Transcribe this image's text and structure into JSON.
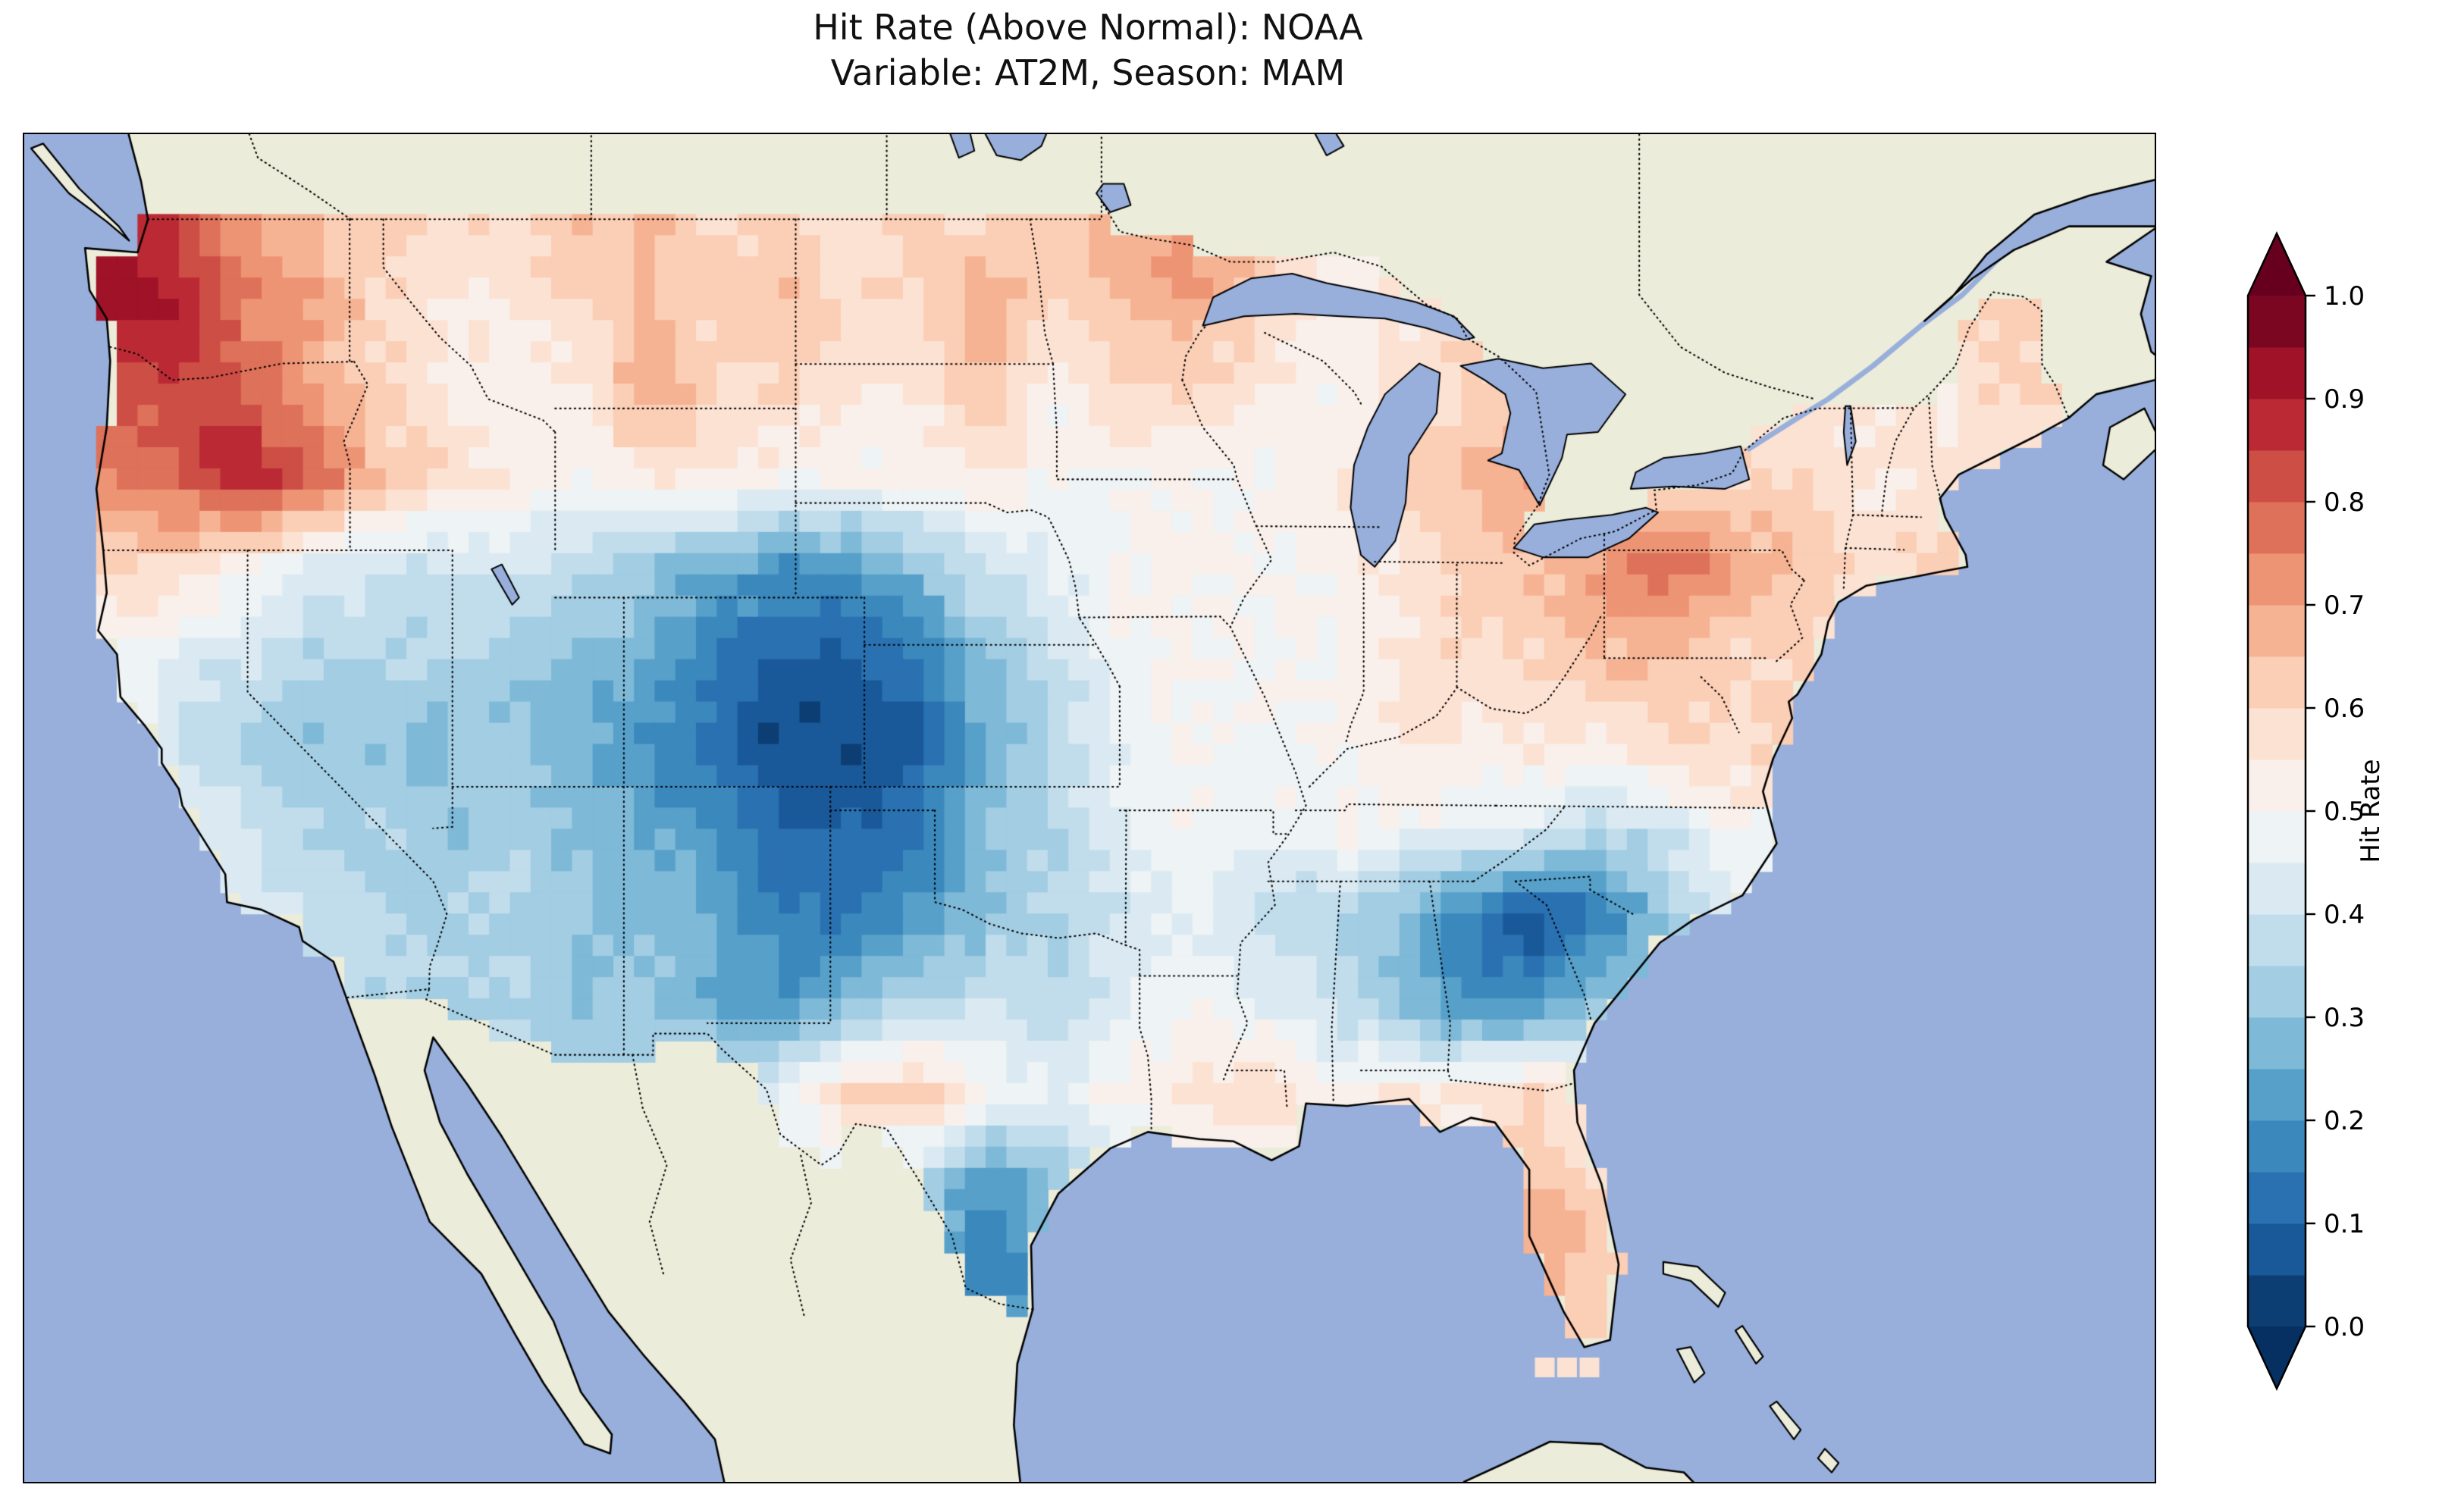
{
  "title": {
    "line1": "Hit Rate (Above Normal): NOAA",
    "line2": "Variable: AT2M, Season: MAM"
  },
  "colorbar": {
    "label": "Hit Rate",
    "ticks": [
      "0.0",
      "0.1",
      "0.2",
      "0.3",
      "0.4",
      "0.5",
      "0.6",
      "0.7",
      "0.8",
      "0.9",
      "1.0"
    ],
    "min": 0.0,
    "max": 1.0,
    "extend": "both",
    "bands": 20
  },
  "colors": {
    "ocean": "#98afdc",
    "land": "#ececda",
    "coastline": "#000000",
    "figure_background": "#ffffff",
    "border_linestyle": "dotted",
    "colormap_stops": [
      "#053061",
      "#2166ac",
      "#4393c3",
      "#92c5de",
      "#d1e5f0",
      "#f7f7f7",
      "#fddbc7",
      "#f4a582",
      "#d6604d",
      "#b2182b",
      "#67001f"
    ]
  },
  "chart_data": {
    "type": "heatmap",
    "title": "Hit Rate (Above Normal): NOAA",
    "subtitle": "Variable: AT2M, Season: MAM",
    "source": "NOAA",
    "variable": "AT2M",
    "season": "MAM",
    "category": "Above Normal",
    "colorbar_label": "Hit Rate",
    "value_range": [
      0.0,
      1.0
    ],
    "colormap": "RdBu_r",
    "region": "Contiguous United States",
    "florida_keys_values": [
      0.55,
      0.55,
      0.55
    ],
    "grid": {
      "lon_min": -125,
      "lon_max": -66,
      "lat_min": 24,
      "lat_max": 50,
      "ncols": 30,
      "nrows": 14,
      "values_rows_north_to_south": [
        [
          0.9,
          0.85,
          0.7,
          0.65,
          0.6,
          0.6,
          0.6,
          0.65,
          0.65,
          0.6,
          0.6,
          0.55,
          0.6,
          0.6,
          0.65,
          0.7,
          0.75,
          0.65,
          0.55,
          0.55,
          0.55,
          0.55,
          0.55,
          0.55,
          0.55,
          0.6,
          0.6,
          0.6,
          0.65,
          0.65
        ],
        [
          0.95,
          0.9,
          0.75,
          0.7,
          0.6,
          0.55,
          0.55,
          0.6,
          0.65,
          0.6,
          0.65,
          0.6,
          0.6,
          0.7,
          0.6,
          0.65,
          0.7,
          0.6,
          0.55,
          0.55,
          0.6,
          0.6,
          0.55,
          0.55,
          0.6,
          0.6,
          0.6,
          0.6,
          0.6,
          0.6
        ],
        [
          0.8,
          0.85,
          0.8,
          0.7,
          0.6,
          0.55,
          0.5,
          0.55,
          0.7,
          0.6,
          0.6,
          0.55,
          0.55,
          0.65,
          0.5,
          0.6,
          0.6,
          0.55,
          0.5,
          0.55,
          0.6,
          0.6,
          0.55,
          0.55,
          0.55,
          0.55,
          0.55,
          0.55,
          0.6,
          0.6
        ],
        [
          0.75,
          0.8,
          0.9,
          0.8,
          0.65,
          0.6,
          0.55,
          0.5,
          0.55,
          0.55,
          0.5,
          0.5,
          0.5,
          0.55,
          0.5,
          0.5,
          0.5,
          0.5,
          0.55,
          0.6,
          0.65,
          0.7,
          0.6,
          0.6,
          0.6,
          0.6,
          0.55,
          0.55,
          0.55,
          0.55
        ],
        [
          0.6,
          0.6,
          0.5,
          0.45,
          0.4,
          0.4,
          0.4,
          0.35,
          0.3,
          0.25,
          0.2,
          0.2,
          0.3,
          0.4,
          0.45,
          0.5,
          0.5,
          0.5,
          0.5,
          0.55,
          0.6,
          0.65,
          0.7,
          0.8,
          0.7,
          0.65,
          0.6,
          0.6,
          0.6,
          0.6
        ],
        [
          0.5,
          0.45,
          0.4,
          0.35,
          0.35,
          0.35,
          0.3,
          0.3,
          0.25,
          0.15,
          0.1,
          0.1,
          0.15,
          0.3,
          0.4,
          0.5,
          0.5,
          0.5,
          0.5,
          0.55,
          0.6,
          0.6,
          0.65,
          0.65,
          0.6,
          0.6,
          0.6,
          0.6,
          0.6,
          0.6
        ],
        [
          0.45,
          0.4,
          0.35,
          0.3,
          0.3,
          0.3,
          0.3,
          0.25,
          0.2,
          0.1,
          0.05,
          0.05,
          0.1,
          0.25,
          0.35,
          0.45,
          0.5,
          0.5,
          0.5,
          0.55,
          0.55,
          0.55,
          0.55,
          0.6,
          0.6,
          0.6,
          0.6,
          0.6,
          0.6,
          0.6
        ],
        [
          0.45,
          0.45,
          0.4,
          0.35,
          0.35,
          0.3,
          0.35,
          0.3,
          0.25,
          0.2,
          0.1,
          0.1,
          0.15,
          0.3,
          0.35,
          0.45,
          0.5,
          0.45,
          0.5,
          0.5,
          0.45,
          0.45,
          0.35,
          0.4,
          0.5,
          0.5,
          0.5,
          0.5,
          0.5,
          0.5
        ],
        [
          0.45,
          0.45,
          0.45,
          0.4,
          0.35,
          0.35,
          0.35,
          0.3,
          0.3,
          0.25,
          0.15,
          0.15,
          0.2,
          0.3,
          0.35,
          0.4,
          0.45,
          0.4,
          0.35,
          0.3,
          0.15,
          0.05,
          0.15,
          0.3,
          0.45,
          0.45,
          0.45,
          0.45,
          0.45,
          0.45
        ],
        [
          0.4,
          0.4,
          0.4,
          0.4,
          0.35,
          0.35,
          0.35,
          0.3,
          0.3,
          0.25,
          0.2,
          0.3,
          0.35,
          0.4,
          0.35,
          0.45,
          0.5,
          0.45,
          0.4,
          0.3,
          0.2,
          0.2,
          0.3,
          0.35,
          0.4,
          0.4,
          0.4,
          0.4,
          0.4,
          0.4
        ],
        [
          0.4,
          0.4,
          0.4,
          0.4,
          0.35,
          0.35,
          0.35,
          0.35,
          0.35,
          0.4,
          0.45,
          0.6,
          0.65,
          0.5,
          0.45,
          0.5,
          0.55,
          0.6,
          0.5,
          0.55,
          0.55,
          0.6,
          0.55,
          0.5,
          0.45,
          0.45,
          0.45,
          0.45,
          0.45,
          0.45
        ],
        [
          0.4,
          0.4,
          0.4,
          0.4,
          0.4,
          0.4,
          0.4,
          0.4,
          0.4,
          0.45,
          0.5,
          0.45,
          0.35,
          0.2,
          0.3,
          0.45,
          0.5,
          0.5,
          0.5,
          0.55,
          0.55,
          0.65,
          0.6,
          0.55,
          0.5,
          0.5,
          0.5,
          0.5,
          0.5,
          0.5
        ],
        [
          0.4,
          0.4,
          0.4,
          0.4,
          0.4,
          0.4,
          0.4,
          0.4,
          0.4,
          0.45,
          0.45,
          0.4,
          0.25,
          0.15,
          0.25,
          0.45,
          0.5,
          0.5,
          0.5,
          0.55,
          0.6,
          0.7,
          0.65,
          0.55,
          0.5,
          0.5,
          0.5,
          0.5,
          0.5,
          0.5
        ],
        [
          0.4,
          0.4,
          0.4,
          0.4,
          0.4,
          0.4,
          0.4,
          0.4,
          0.4,
          0.45,
          0.45,
          0.4,
          0.3,
          0.2,
          0.3,
          0.45,
          0.5,
          0.5,
          0.5,
          0.55,
          0.6,
          0.65,
          0.6,
          0.55,
          0.5,
          0.5,
          0.5,
          0.5,
          0.5,
          0.5
        ]
      ]
    }
  }
}
